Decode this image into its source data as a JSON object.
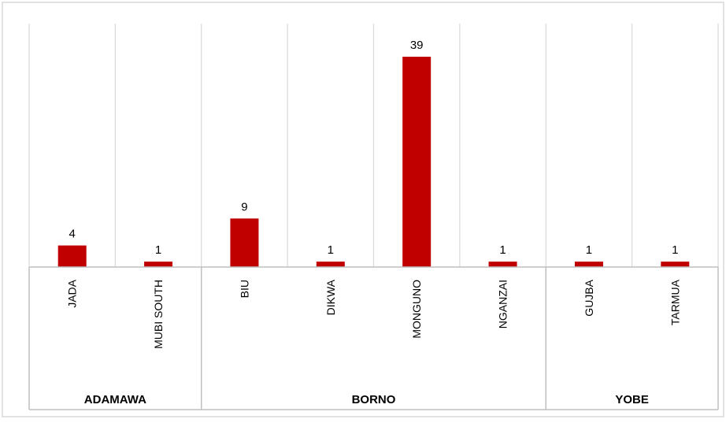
{
  "chart_data": {
    "type": "bar",
    "title": "",
    "xlabel": "",
    "ylabel": "",
    "ylim": [
      0,
      42
    ],
    "grid": "vertical",
    "legend": "none",
    "bar_color": "#C00000",
    "groups": [
      {
        "name": "ADAMAWA",
        "categories": [
          "JADA",
          "MUBI SOUTH"
        ]
      },
      {
        "name": "BORNO",
        "categories": [
          "BIU",
          "DIKWA",
          "MONGUNO",
          "NGANZAI"
        ]
      },
      {
        "name": "YOBE",
        "categories": [
          "GUJBA",
          "TARMUA"
        ]
      }
    ],
    "categories": [
      "JADA",
      "MUBI SOUTH",
      "BIU",
      "DIKWA",
      "MONGUNO",
      "NGANZAI",
      "GUJBA",
      "TARMUA"
    ],
    "values": [
      4,
      1,
      9,
      1,
      39,
      1,
      1,
      1
    ],
    "data_labels": [
      "4",
      "1",
      "9",
      "1",
      "39",
      "1",
      "1",
      "1"
    ]
  }
}
